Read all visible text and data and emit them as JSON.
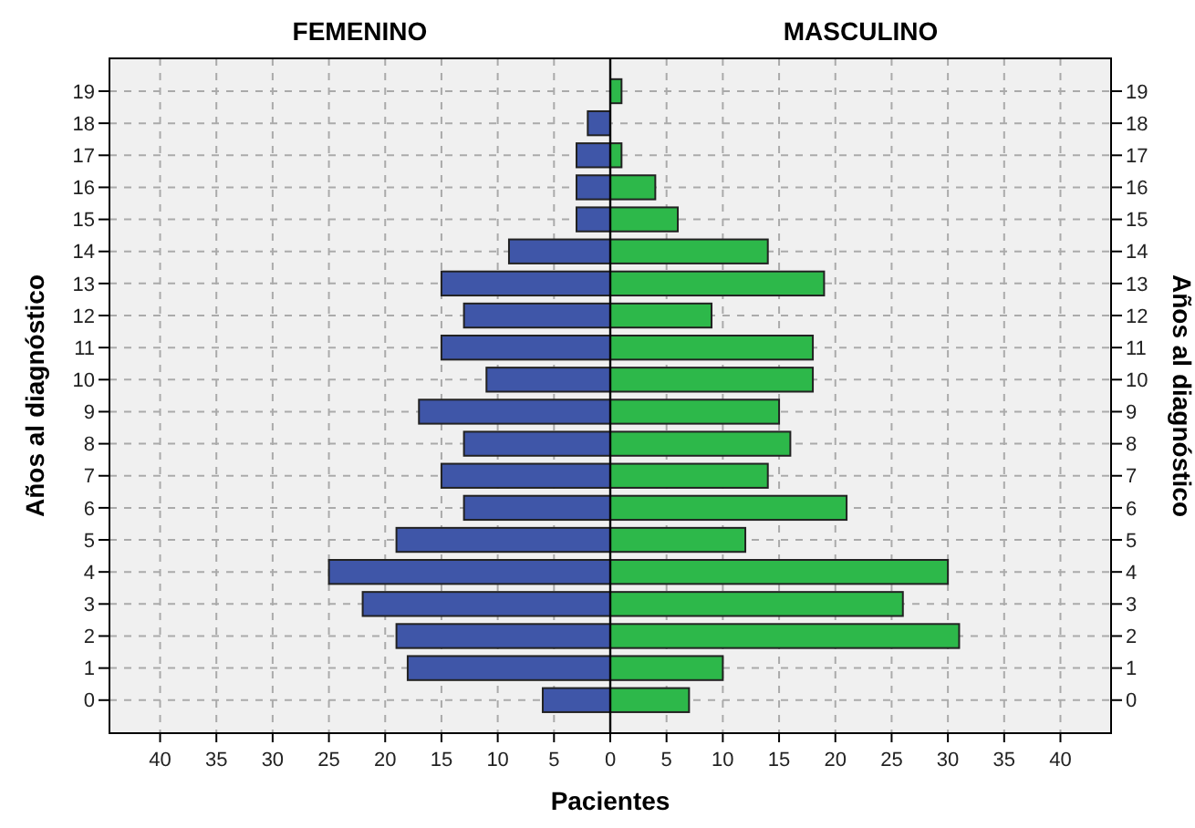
{
  "chart_data": {
    "type": "bar",
    "orientation": "horizontal",
    "xlabel": "Pacientes",
    "ylabel": "Años al diagnóstico",
    "y2label": "Años al diagnóstico",
    "categories": [
      "19",
      "18",
      "17",
      "16",
      "15",
      "14",
      "13",
      "12",
      "11",
      "10",
      "9",
      "8",
      "7",
      "6",
      "5",
      "4",
      "3",
      "2",
      "1",
      "0"
    ],
    "series": [
      {
        "color": "#3f56a8",
        "values": [
          0,
          -2,
          -3,
          -3,
          -3,
          -9,
          -15,
          -13,
          -15,
          -11,
          -17,
          -13,
          -15,
          -13,
          -19,
          -25,
          -22,
          -19,
          -18,
          -6
        ]
      },
      {
        "color": "#2db84a",
        "values": [
          1,
          0,
          1,
          4,
          6,
          14,
          19,
          9,
          18,
          18,
          15,
          16,
          14,
          21,
          12,
          30,
          26,
          31,
          10,
          7
        ]
      }
    ],
    "xlim": [
      -44.5,
      44.5
    ],
    "xticks": [
      {
        "value": -40,
        "label": "40"
      },
      {
        "value": -35,
        "label": "35"
      },
      {
        "value": -30,
        "label": "30"
      },
      {
        "value": -25,
        "label": "25"
      },
      {
        "value": -20,
        "label": "20"
      },
      {
        "value": -15,
        "label": "15"
      },
      {
        "value": -10,
        "label": "10"
      },
      {
        "value": -5,
        "label": "5"
      },
      0,
      5,
      10,
      15,
      20,
      25,
      30,
      35,
      40
    ],
    "annotations": [
      "FEMENINO",
      "MASCULINO"
    ],
    "stacked": true,
    "grid": true
  }
}
